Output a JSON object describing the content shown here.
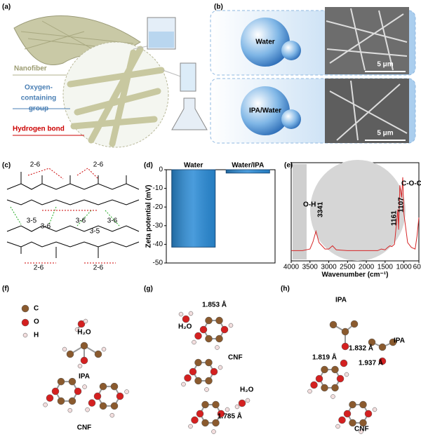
{
  "panel_labels": [
    "(a)",
    "(b)",
    "(c)",
    "(d)",
    "(e)",
    "(f)",
    "(g)",
    "(h)"
  ],
  "a": {
    "nanofiber": "Nanofiber",
    "oxygen_group": [
      "Oxygen-",
      "containing",
      "group"
    ],
    "hydrogen_bond": "Hydrogen bond"
  },
  "b": {
    "solvents": [
      "Water",
      "IPA/Water"
    ],
    "scale_bars": [
      "5 μm",
      "5 μm"
    ]
  },
  "c": {
    "bond_labels": [
      "2-6",
      "2-6",
      "3-5",
      "3-6",
      "3-6",
      "3-6",
      "3-5",
      "2-6",
      "2-6"
    ]
  },
  "chart_data": [
    {
      "type": "bar",
      "categories": [
        "Water",
        "Water/IPA"
      ],
      "values": [
        -41.5,
        -1.8
      ],
      "color": "#2a8bd6",
      "ylim": [
        -50,
        0
      ],
      "yticks": [
        0,
        -10,
        -20,
        -30,
        -40,
        -50
      ],
      "y_label": "Zeta potential (mV)"
    },
    {
      "type": "line",
      "x": [
        4000,
        3700,
        3500,
        3420,
        3341,
        3260,
        3100,
        3000,
        2900,
        2800,
        2500,
        2000,
        1700,
        1600,
        1500,
        1430,
        1370,
        1320,
        1250,
        1161,
        1140,
        1107,
        1060,
        1030,
        1000,
        900,
        800,
        700,
        650,
        600
      ],
      "values": [
        0.04,
        0.04,
        0.06,
        0.15,
        0.28,
        0.14,
        0.06,
        0.06,
        0.1,
        0.05,
        0.04,
        0.04,
        0.04,
        0.06,
        0.05,
        0.08,
        0.1,
        0.09,
        0.12,
        0.55,
        0.3,
        0.85,
        0.7,
        0.95,
        0.5,
        0.14,
        0.08,
        0.06,
        0.22,
        0.45
      ],
      "color": "#d62728",
      "xlim": [
        4000,
        600
      ],
      "ylim": [
        0,
        1
      ],
      "xticks": [
        4000,
        3500,
        3000,
        2500,
        2000,
        1500,
        1000,
        600
      ],
      "x_label": "Wavenumber (cm⁻¹)",
      "annotations": [
        "O-H",
        "3341",
        "1161",
        "1107",
        "C-O-C"
      ]
    }
  ],
  "f": {
    "legend": [
      "C",
      "O",
      "H"
    ],
    "labels": [
      "H₂O",
      "IPA",
      "CNF"
    ]
  },
  "g": {
    "labels": [
      "H₂O",
      "1.853 Å",
      "CNF",
      "H₂O",
      "1.785 Å"
    ]
  },
  "h": {
    "labels": [
      "IPA",
      "1.832 Å",
      "1.819 Å",
      "IPA",
      "1.937 Å",
      "CNF"
    ]
  }
}
